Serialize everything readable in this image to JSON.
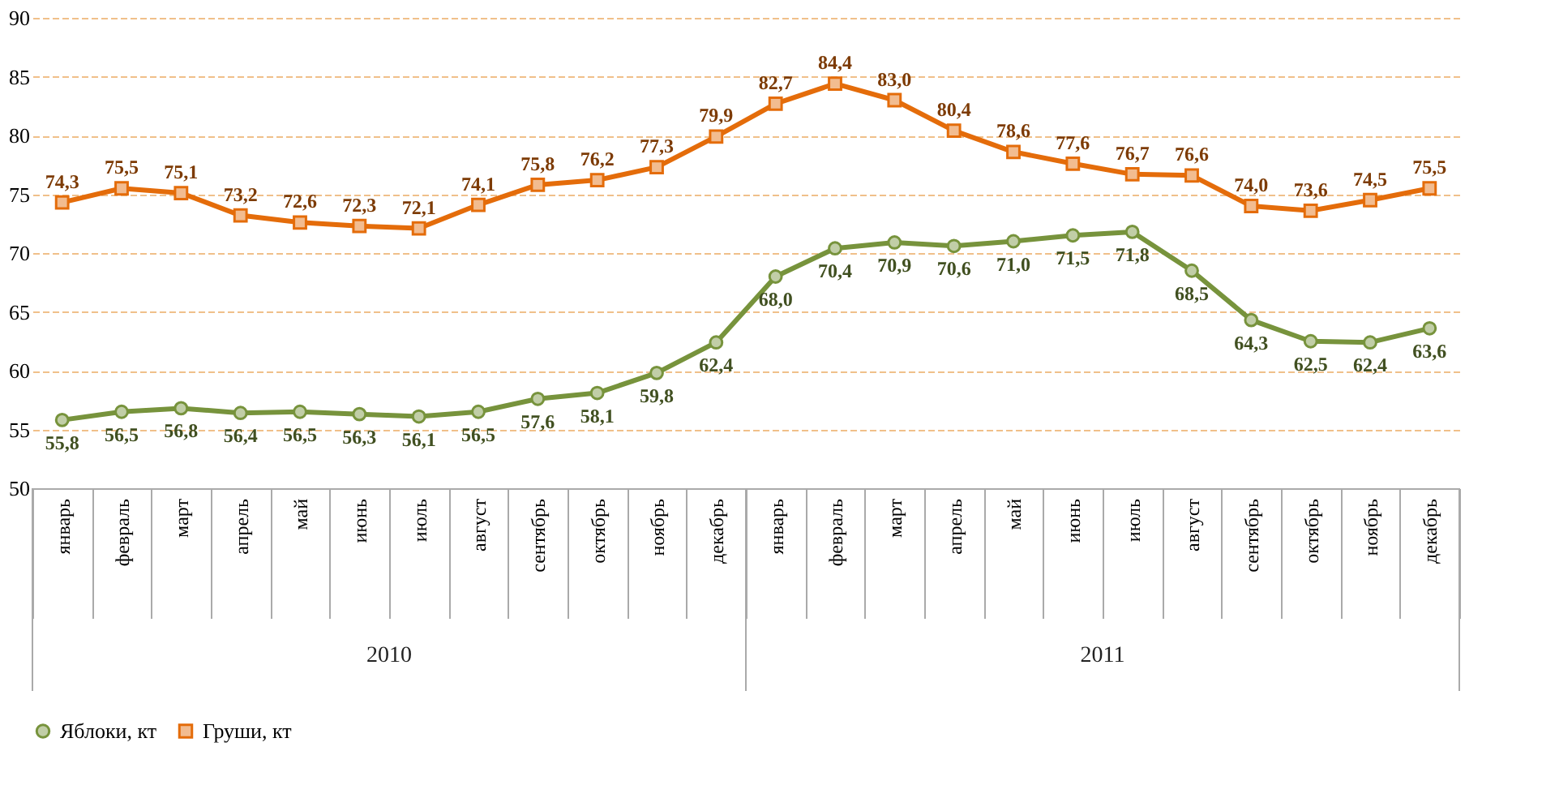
{
  "chart_data": {
    "type": "line",
    "categories": [
      "январь",
      "февраль",
      "март",
      "апрель",
      "май",
      "июнь",
      "июль",
      "август",
      "сентябрь",
      "октябрь",
      "ноябрь",
      "декабрь",
      "январь",
      "февраль",
      "март",
      "апрель",
      "май",
      "июнь",
      "июль",
      "август",
      "сентябрь",
      "октябрь",
      "ноябрь",
      "декабрь"
    ],
    "series": [
      {
        "name": "Яблоки, кт",
        "color": "#77933c",
        "marker": "circle",
        "values": [
          55.8,
          56.5,
          56.8,
          56.4,
          56.5,
          56.3,
          56.1,
          56.5,
          57.6,
          58.1,
          59.8,
          62.4,
          68.0,
          70.4,
          70.9,
          70.6,
          71.0,
          71.5,
          71.8,
          68.5,
          64.3,
          62.5,
          62.4,
          63.6
        ],
        "value_labels": [
          "55,8",
          "56,5",
          "56,8",
          "56,4",
          "56,5",
          "56,3",
          "56,1",
          "56,5",
          "57,6",
          "58,1",
          "59,8",
          "62,4",
          "68,0",
          "70,4",
          "70,9",
          "70,6",
          "71,0",
          "71,5",
          "71,8",
          "68,5",
          "64,3",
          "62,5",
          "62,4",
          "63,6"
        ]
      },
      {
        "name": "Груши, кт",
        "color": "#e46c0a",
        "marker": "square",
        "values": [
          74.3,
          75.5,
          75.1,
          73.2,
          72.6,
          72.3,
          72.1,
          74.1,
          75.8,
          76.2,
          77.3,
          79.9,
          82.7,
          84.4,
          83.0,
          80.4,
          78.6,
          77.6,
          76.7,
          76.6,
          74.0,
          73.6,
          74.5,
          75.5
        ],
        "value_labels": [
          "74,3",
          "75,5",
          "75,1",
          "73,2",
          "72,6",
          "72,3",
          "72,1",
          "74,1",
          "75,8",
          "76,2",
          "77,3",
          "79,9",
          "82,7",
          "84,4",
          "83,0",
          "80,4",
          "78,6",
          "77,6",
          "76,7",
          "76,6",
          "74,0",
          "73,6",
          "74,5",
          "75,5"
        ]
      }
    ],
    "annotations": [
      "2010",
      "2011"
    ],
    "ylim": [
      50,
      90
    ],
    "yticks": [
      50,
      55,
      60,
      65,
      70,
      75,
      80,
      85,
      90
    ],
    "grid": "y",
    "legend": "bottom",
    "line_style": "solid"
  }
}
